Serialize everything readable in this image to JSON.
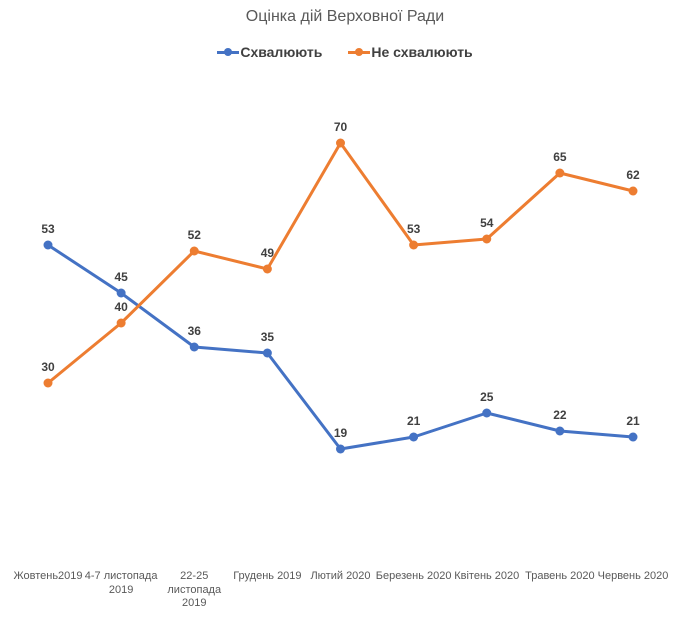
{
  "chart_data": {
    "type": "line",
    "title": "Оцінка дій Верховної Ради",
    "categories": [
      "Жовтень2019",
      "4-7 листопада\n2019",
      "22-25\nлистопада\n2019",
      "Грудень 2019",
      "Лютий 2020",
      "Березень 2020",
      "Квітень 2020",
      "Травень 2020",
      "Червень 2020"
    ],
    "series": [
      {
        "name": "Схвалюють",
        "color": "#4472C4",
        "values": [
          53,
          45,
          36,
          35,
          19,
          21,
          25,
          22,
          21
        ]
      },
      {
        "name": "Не схвалюють",
        "color": "#ED7D31",
        "values": [
          30,
          40,
          52,
          49,
          70,
          53,
          54,
          65,
          62
        ]
      }
    ],
    "ylim": [
      0,
      80
    ],
    "grid": false,
    "axes_visible": false,
    "legend_position": "top",
    "data_labels": true,
    "title_color": "#595959",
    "axis_label_color": "#595959",
    "data_label_color": "#404040"
  }
}
